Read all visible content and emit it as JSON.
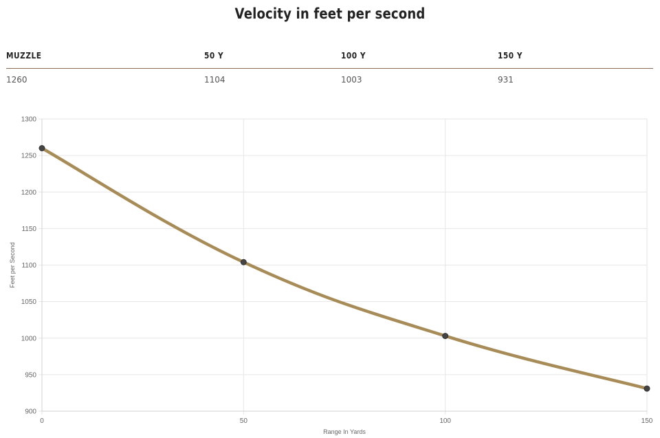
{
  "title": "Velocity in feet per second",
  "table": {
    "headers": [
      "MUZZLE",
      "50 Y",
      "100 Y",
      "150 Y"
    ],
    "values": [
      "1260",
      "1104",
      "1003",
      "931"
    ]
  },
  "chart_data": {
    "type": "line",
    "title": "",
    "xlabel": "Range In Yards",
    "ylabel": "Feet per Second",
    "x": [
      0,
      50,
      100,
      150
    ],
    "series": [
      {
        "values": [
          1260,
          1104,
          1003,
          931
        ],
        "color": "#a88c58"
      }
    ],
    "xlim": [
      0,
      150
    ],
    "ylim": [
      900,
      1300
    ],
    "x_ticks": [
      "0",
      "50",
      "100",
      "150"
    ],
    "y_ticks": [
      "900",
      "950",
      "1000",
      "1050",
      "1100",
      "1150",
      "1200",
      "1250",
      "1300"
    ],
    "grid": true,
    "legend": "none",
    "point_color": "#444444",
    "grid_color": "#e6e6e6"
  }
}
